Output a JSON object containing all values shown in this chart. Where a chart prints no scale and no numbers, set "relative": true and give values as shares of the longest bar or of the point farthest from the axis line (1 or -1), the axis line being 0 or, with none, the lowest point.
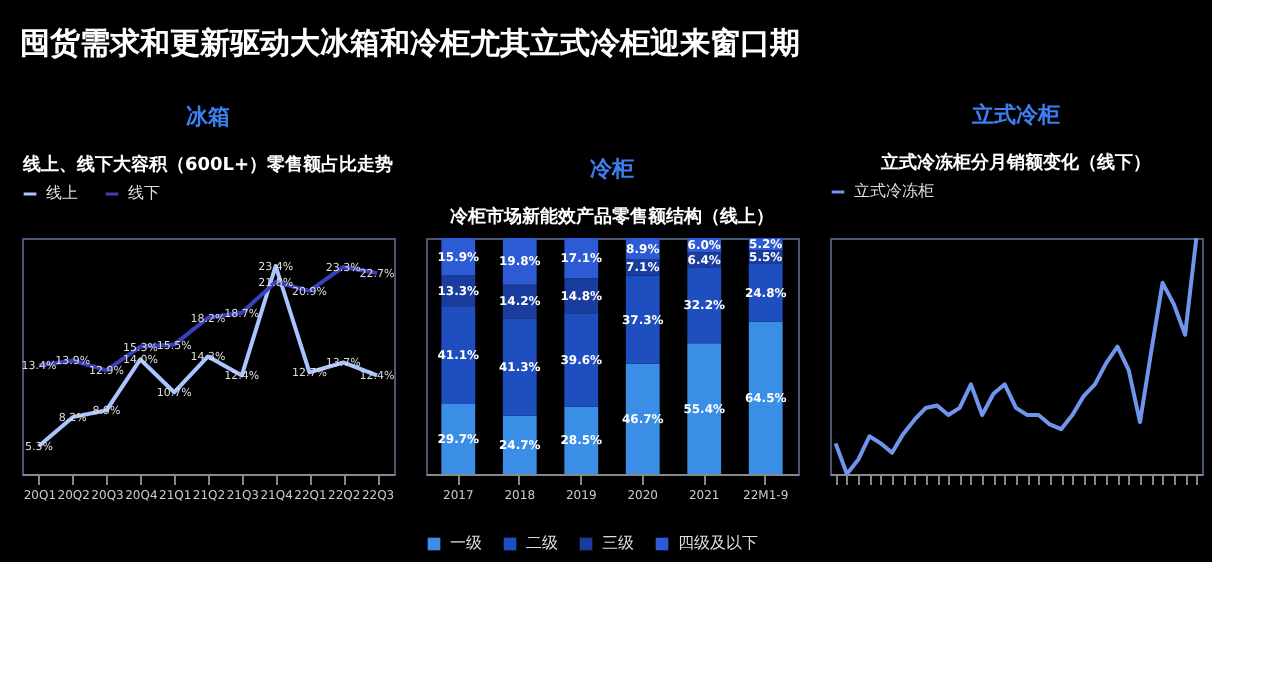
{
  "chart_data": [
    {
      "type": "line",
      "title": "冰箱",
      "subtitle": "线上、线下大容积（600L+）零售额占比走势",
      "annotations": [
        "囤货需求和更新驱动大冰箱和冷柜尤其立式冷柜迎来窗口期"
      ],
      "categories": [
        "20Q1",
        "20Q2",
        "20Q3",
        "20Q4",
        "21Q1",
        "21Q2",
        "21Q3",
        "21Q4",
        "22Q1",
        "22Q2",
        "22Q3"
      ],
      "series": [
        {
          "name": "线上",
          "color": "#a9c4ff",
          "values": [
            5.3,
            8.2,
            8.9,
            14.0,
            10.7,
            14.3,
            12.4,
            23.4,
            12.7,
            13.7,
            12.4
          ],
          "value_labels": [
            "5.3%",
            "8.2%",
            "8.9%",
            "14.0%",
            "10.7%",
            "14.3%",
            "12.4%",
            "23.4%",
            "12.7%",
            "13.7%",
            "12.4%"
          ]
        },
        {
          "name": "线下",
          "color": "#3b3fb8",
          "values": [
            13.4,
            13.9,
            12.9,
            15.3,
            15.5,
            18.2,
            18.7,
            21.8,
            20.9,
            23.3,
            22.7
          ],
          "value_labels": [
            "13.4%",
            "13.9%",
            "12.9%",
            "15.3%",
            "15.5%",
            "18.2%",
            "18.7%",
            "21.8%",
            "20.9%",
            "23.3%",
            "22.7%"
          ]
        }
      ],
      "legend": "top",
      "marker": "none",
      "line_style": "solid",
      "grid": false
    },
    {
      "type": "bar",
      "stacked": true,
      "title": "冷柜",
      "subtitle": "冷柜市场新能效产品零售额结构（线上）",
      "categories": [
        "2017",
        "2018",
        "2019",
        "2020",
        "2021",
        "22M1-9"
      ],
      "series": [
        {
          "name": "一级",
          "color": "#3b8ee6",
          "values": [
            29.7,
            24.7,
            28.5,
            46.7,
            55.4,
            64.5
          ],
          "value_labels": [
            "29.7%",
            "24.7%",
            "28.5%",
            "46.7%",
            "55.4%",
            "64.5%"
          ]
        },
        {
          "name": "二级",
          "color": "#1f4fbf",
          "values": [
            41.1,
            41.3,
            39.6,
            37.3,
            32.2,
            24.8
          ],
          "value_labels": [
            "41.1%",
            "41.3%",
            "39.6%",
            "37.3%",
            "32.2%",
            "24.8%"
          ]
        },
        {
          "name": "三级",
          "color": "#1a3c9e",
          "values": [
            13.3,
            14.2,
            14.8,
            7.1,
            6.4,
            5.5
          ],
          "value_labels": [
            "13.3%",
            "14.2%",
            "14.8%",
            "7.1%",
            "6.4%",
            "5.5%"
          ]
        },
        {
          "name": "四级及以下",
          "color": "#2d5bd3",
          "values": [
            15.9,
            19.8,
            17.1,
            8.9,
            6.0,
            5.2
          ],
          "value_labels": [
            "15.9%",
            "19.8%",
            "17.1%",
            "8.9%",
            "6.0%",
            "5.2%"
          ]
        }
      ],
      "legend": "bottom",
      "grid": false
    },
    {
      "type": "line",
      "relative": true,
      "title": "立式冷柜",
      "subtitle": "立式冷冻柜分月销额变化（线下）",
      "categories": [
        null,
        null,
        null,
        null,
        null,
        null,
        null,
        null,
        null,
        null,
        null,
        null,
        null,
        null,
        null,
        null,
        null,
        null,
        null,
        null,
        null,
        null,
        null,
        null,
        null,
        null,
        null,
        null,
        null,
        null,
        null,
        null,
        null
      ],
      "series": [
        {
          "name": "立式冷冻柜",
          "color": "#6f95ec",
          "values": [
            0.13,
            0,
            0.06,
            0.16,
            0.13,
            0.09,
            0.17,
            0.23,
            0.28,
            0.29,
            0.25,
            0.28,
            0.38,
            0.25,
            0.34,
            0.38,
            0.28,
            0.25,
            0.25,
            0.21,
            0.19,
            0.25,
            0.33,
            0.38,
            0.47,
            0.54,
            0.44,
            0.22,
            0.52,
            0.81,
            0.72,
            0.59,
            1
          ]
        }
      ],
      "legend": "top",
      "marker": "none",
      "line_style": "solid",
      "grid": false
    }
  ]
}
